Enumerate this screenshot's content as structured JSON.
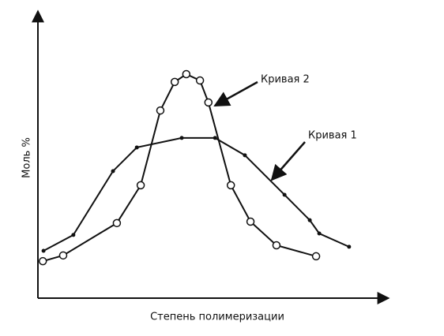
{
  "chart_data": {
    "type": "line",
    "x_label": "Степень полимеризации",
    "y_label": "Моль %",
    "xlim": [
      0,
      100
    ],
    "ylim": [
      0,
      100
    ],
    "series": [
      {
        "name": "Кривая 1",
        "color": "#111111",
        "marker": "dot",
        "x": [
          1.6,
          10.1,
          21.4,
          28.2,
          41.0,
          50.5,
          59.0,
          70.3,
          77.5,
          80.2,
          88.7
        ],
        "values": [
          16.4,
          21.9,
          44.0,
          52.2,
          55.5,
          55.5,
          49.5,
          35.8,
          27.0,
          22.4,
          17.8
        ]
      },
      {
        "name": "Кривая 2",
        "color": "#111111",
        "marker": "circle",
        "x": [
          1.4,
          7.2,
          22.5,
          29.3,
          34.9,
          39.0,
          42.3,
          46.2,
          48.6,
          55.0,
          60.6,
          68.0,
          79.3
        ],
        "values": [
          12.8,
          14.8,
          26.0,
          39.1,
          65.0,
          74.9,
          77.6,
          75.4,
          67.8,
          39.1,
          26.5,
          18.3,
          14.5
        ]
      }
    ]
  }
}
